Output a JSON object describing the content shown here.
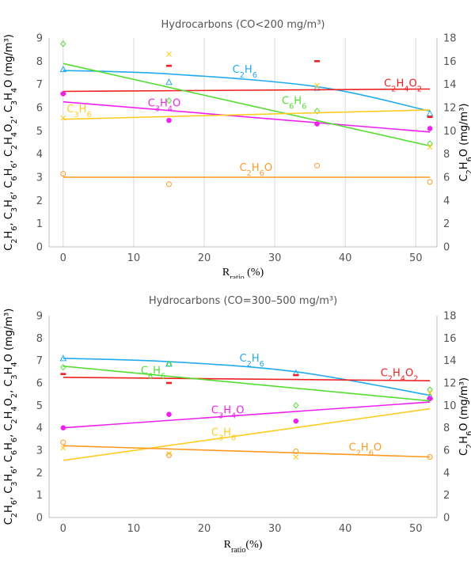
{
  "chart_data": [
    {
      "type": "scatter",
      "title": "Hydrocarbons (CO<200 mg/m³)",
      "xlabel_main": "R",
      "xlabel_sub": "ratio",
      "xlabel_unit": " (%)",
      "ylabel_left": "C₂H₆, C₃H₆, C₆H₆, C₂H₄O₂, C₃H₄O (mg/m³)",
      "ylabel_right": "C₂H₆O (mg/m³)",
      "xlim": [
        -2,
        53
      ],
      "xticks": [
        0,
        10,
        20,
        30,
        40,
        50
      ],
      "ylim_left": [
        0,
        9
      ],
      "yticks_left": [
        0,
        1,
        2,
        3,
        4,
        5,
        6,
        7,
        8,
        9
      ],
      "ylim_right": [
        0,
        18
      ],
      "yticks_right": [
        0,
        2,
        4,
        6,
        8,
        10,
        12,
        14,
        16,
        18
      ],
      "grid": "vertical",
      "series": [
        {
          "name": "C₂H₆",
          "color": "#22aaee",
          "marker": "triangle",
          "axis": "left",
          "points": [
            [
              0,
              7.65
            ],
            [
              15,
              7.1
            ],
            [
              36,
              6.85
            ],
            [
              52,
              5.75
            ]
          ],
          "trend": [
            [
              0,
              7.6
            ],
            [
              15,
              7.45
            ],
            [
              36,
              6.9
            ],
            [
              52,
              5.85
            ]
          ],
          "label_at": [
            24,
            7.5
          ]
        },
        {
          "name": "C₂H₄O₂",
          "color": "#ee2222",
          "marker": "dash",
          "axis": "left",
          "points": [
            [
              0,
              6.6
            ],
            [
              15,
              7.8
            ],
            [
              36,
              8.0
            ],
            [
              52,
              5.6
            ]
          ],
          "trend": [
            [
              0,
              6.7
            ],
            [
              52,
              6.8
            ]
          ],
          "label_at": [
            45.5,
            6.9
          ]
        },
        {
          "name": "C₃H₄O",
          "color": "#ee22ee",
          "marker": "circle-filled",
          "axis": "left",
          "points": [
            [
              0,
              6.6
            ],
            [
              15,
              5.45
            ],
            [
              36,
              5.3
            ],
            [
              52,
              5.1
            ]
          ],
          "trend": [
            [
              0,
              6.25
            ],
            [
              52,
              4.95
            ]
          ],
          "label_at": [
            12,
            6.05
          ]
        },
        {
          "name": "C₆H₆",
          "color": "#55dd33",
          "marker": "diamond",
          "axis": "left",
          "points": [
            [
              0,
              8.75
            ],
            [
              15,
              6.3
            ],
            [
              36,
              5.85
            ],
            [
              52,
              4.45
            ]
          ],
          "trend": [
            [
              0,
              7.9
            ],
            [
              52,
              4.35
            ]
          ],
          "label_at": [
            31,
            6.15
          ]
        },
        {
          "name": "C₃H₆",
          "color": "#ffcc22",
          "marker": "cross",
          "axis": "left",
          "points": [
            [
              0,
              5.55
            ],
            [
              15,
              8.3
            ],
            [
              36,
              6.95
            ],
            [
              52,
              4.3
            ]
          ],
          "trend": [
            [
              0,
              5.5
            ],
            [
              52,
              5.9
            ]
          ],
          "label_at": [
            0.5,
            5.8
          ]
        },
        {
          "name": "C₂H₆O",
          "color": "#ff9922",
          "marker": "circle-open",
          "axis": "right",
          "points": [
            [
              0,
              6.3
            ],
            [
              15,
              5.4
            ],
            [
              36,
              7.0
            ],
            [
              52,
              5.6
            ]
          ],
          "trend": [
            [
              0,
              6.0
            ],
            [
              52,
              6.0
            ]
          ],
          "label_at": [
            25,
            6.55
          ]
        }
      ]
    },
    {
      "type": "scatter",
      "title": "Hydrocarbons (CO=300–500 mg/m³)",
      "xlabel_main": "R",
      "xlabel_sub": "ratio",
      "xlabel_unit": "(%)",
      "ylabel_left": "C₂H₆, C₃H₆, C₆H₆, C₂H₄O₂, C₃H₄O (mg/m³)",
      "ylabel_right": "C₂H₆O (mg/m³)",
      "xlim": [
        -2,
        53
      ],
      "xticks": [
        0,
        10,
        20,
        30,
        40,
        50
      ],
      "ylim_left": [
        0,
        9
      ],
      "yticks_left": [
        0,
        1,
        2,
        3,
        4,
        5,
        6,
        7,
        8,
        9
      ],
      "ylim_right": [
        0,
        18
      ],
      "yticks_right": [
        0,
        2,
        4,
        6,
        8,
        10,
        12,
        14,
        16,
        18
      ],
      "grid": "none",
      "series": [
        {
          "name": "C₂H₆",
          "color": "#22aaee",
          "marker": "triangle",
          "axis": "left",
          "points": [
            [
              0,
              7.1
            ],
            [
              15,
              6.85
            ],
            [
              33,
              6.45
            ],
            [
              52,
              5.4
            ]
          ],
          "trend": [
            [
              0,
              7.1
            ],
            [
              15,
              6.95
            ],
            [
              33,
              6.5
            ],
            [
              52,
              5.45
            ]
          ],
          "label_at": [
            25,
            6.95
          ]
        },
        {
          "name": "C₂H₄O₂",
          "color": "#ee2222",
          "marker": "dash",
          "axis": "left",
          "points": [
            [
              0,
              6.4
            ],
            [
              15,
              6.0
            ],
            [
              33,
              6.35
            ],
            [
              52,
              5.3
            ]
          ],
          "trend": [
            [
              0,
              6.25
            ],
            [
              52,
              6.1
            ]
          ],
          "label_at": [
            45,
            6.3
          ]
        },
        {
          "name": "C₃H₄O",
          "color": "#ee22ee",
          "marker": "circle-filled",
          "axis": "left",
          "points": [
            [
              0,
              4.0
            ],
            [
              15,
              4.6
            ],
            [
              33,
              4.3
            ],
            [
              52,
              5.3
            ]
          ],
          "trend": [
            [
              0,
              4.0
            ],
            [
              52,
              5.15
            ]
          ],
          "label_at": [
            21,
            4.65
          ]
        },
        {
          "name": "C₆H₆",
          "color": "#55dd33",
          "marker": "diamond",
          "axis": "left",
          "points": [
            [
              0,
              6.7
            ],
            [
              15,
              6.85
            ],
            [
              33,
              5.0
            ],
            [
              52,
              5.7
            ]
          ],
          "trend": [
            [
              0,
              6.75
            ],
            [
              52,
              5.2
            ]
          ],
          "label_at": [
            11,
            6.4
          ]
        },
        {
          "name": "C₃H₆",
          "color": "#ffcc22",
          "marker": "cross",
          "axis": "left",
          "points": [
            [
              0,
              3.1
            ],
            [
              15,
              2.85
            ],
            [
              33,
              2.7
            ],
            [
              52,
              5.55
            ]
          ],
          "trend": [
            [
              0,
              2.55
            ],
            [
              52,
              4.85
            ]
          ],
          "label_at": [
            21,
            3.65
          ]
        },
        {
          "name": "C₂H₆O",
          "color": "#ff9922",
          "marker": "circle-open",
          "axis": "right",
          "points": [
            [
              0,
              6.7
            ],
            [
              15,
              5.55
            ],
            [
              33,
              5.9
            ],
            [
              52,
              5.4
            ]
          ],
          "trend": [
            [
              0,
              6.4
            ],
            [
              52,
              5.4
            ]
          ],
          "label_at": [
            40.5,
            5.95
          ]
        }
      ]
    }
  ]
}
